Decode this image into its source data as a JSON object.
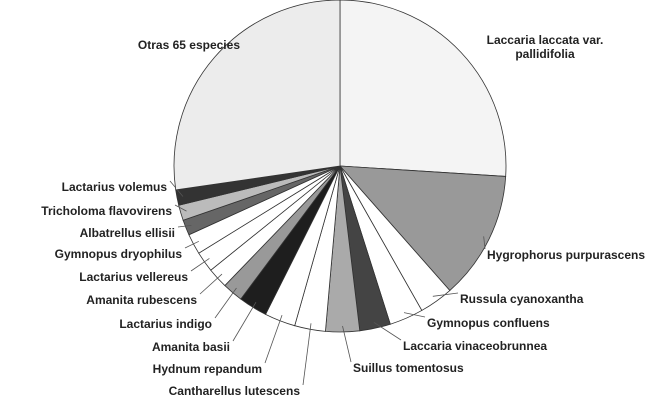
{
  "chart_data": {
    "type": "pie",
    "categories": [
      "Laccaria laccata var. pallidifolia",
      "Hygrophorus purpurascens",
      "Russula cyanoxantha",
      "Gymnopus confluens",
      "Laccaria vinaceobrunnea",
      "Suillus tomentosus",
      "Cantharellus lutescens",
      "Hydnum repandum",
      "Amanita basii",
      "Lactarius indigo",
      "Amanita rubescens",
      "Lactarius vellereus",
      "Gymnopus dryophilus",
      "Albatrellus ellisii",
      "Tricholoma flavovirens",
      "Lactarius volemus",
      "Otras 65 especies"
    ],
    "values": [
      26,
      12.5,
      3.3,
      3.3,
      3,
      3.3,
      3,
      3,
      2.8,
      2,
      2,
      2,
      2,
      1.5,
      1.5,
      1.5,
      27.3
    ],
    "colors": [
      "#f4f4f4",
      "#999999",
      "#ffffff",
      "#ffffff",
      "#444444",
      "#aaaaaa",
      "#ffffff",
      "#ffffff",
      "#1e1e1e",
      "#999999",
      "#ffffff",
      "#ffffff",
      "#ffffff",
      "#666666",
      "#bbbbbb",
      "#333333",
      "#ececec"
    ]
  }
}
